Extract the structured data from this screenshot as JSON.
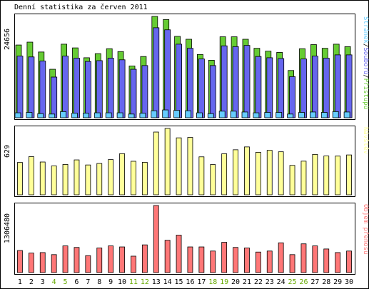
{
  "title": "Denní statistika za červen 2011",
  "colors": {
    "hits": "#66cc33",
    "files": "#6666ee",
    "pages": "#66ccff",
    "visits": "#ffff99",
    "kbytes": "#ff7777",
    "weekend": "#66aa00",
    "text": "#000000",
    "border": "#000000",
    "grid": "#cccccc"
  },
  "chart_data": [
    {
      "type": "bar",
      "panel": "hits",
      "categories": [
        "1",
        "2",
        "3",
        "4",
        "5",
        "6",
        "7",
        "8",
        "9",
        "10",
        "11",
        "12",
        "13",
        "14",
        "15",
        "16",
        "17",
        "18",
        "19",
        "20",
        "21",
        "22",
        "23",
        "24",
        "25",
        "26",
        "27",
        "28",
        "29",
        "30"
      ],
      "weekend_days": [
        "4",
        "5",
        "11",
        "12",
        "18",
        "19",
        "25",
        "26"
      ],
      "ymax_label": "24656",
      "ylim": [
        0,
        24656
      ],
      "legend": [
        {
          "name": "Přístupů",
          "color_key": "hits"
        },
        {
          "name": "Souborů",
          "color_key": "files"
        },
        {
          "name": "Stránek",
          "color_key": "pages"
        }
      ],
      "series": [
        {
          "name": "Přístupů",
          "values": [
            17700,
            18400,
            16000,
            11800,
            17900,
            17000,
            14600,
            15600,
            16800,
            16100,
            12600,
            14900,
            24656,
            23900,
            19800,
            19100,
            15400,
            14000,
            19700,
            19700,
            19100,
            16900,
            16200,
            15900,
            11500,
            16800,
            17800,
            16900,
            17900,
            17300
          ]
        },
        {
          "name": "Souborů",
          "values": [
            15000,
            14800,
            13800,
            9900,
            15000,
            14500,
            13700,
            13900,
            14500,
            14100,
            11800,
            12700,
            21900,
            21400,
            17900,
            16900,
            14300,
            12700,
            17500,
            17300,
            17600,
            14900,
            14600,
            14400,
            10000,
            14300,
            15000,
            14500,
            15300,
            15300
          ]
        },
        {
          "name": "Stránek",
          "values": [
            1200,
            1300,
            1000,
            900,
            1500,
            1100,
            1100,
            1200,
            1200,
            1200,
            900,
            1100,
            1700,
            1900,
            1800,
            1700,
            1200,
            1000,
            1600,
            1600,
            1400,
            1200,
            1300,
            1300,
            900,
            1300,
            1400,
            1300,
            1500,
            1400
          ]
        }
      ]
    },
    {
      "type": "bar",
      "panel": "visits",
      "categories": [
        "1",
        "2",
        "3",
        "4",
        "5",
        "6",
        "7",
        "8",
        "9",
        "10",
        "11",
        "12",
        "13",
        "14",
        "15",
        "16",
        "17",
        "18",
        "19",
        "20",
        "21",
        "22",
        "23",
        "24",
        "25",
        "26",
        "27",
        "28",
        "29",
        "30"
      ],
      "ymax_label": "629",
      "ylim": [
        0,
        629
      ],
      "legend": [
        {
          "name": "Návštěv",
          "color_key": "visits"
        }
      ],
      "series": [
        {
          "name": "Návštěv",
          "values": [
            307,
            362,
            311,
            274,
            288,
            331,
            283,
            297,
            334,
            390,
            318,
            308,
            595,
            629,
            540,
            544,
            360,
            287,
            389,
            427,
            454,
            403,
            422,
            408,
            279,
            319,
            383,
            368,
            367,
            378
          ]
        }
      ]
    },
    {
      "type": "bar",
      "panel": "kbytes",
      "categories": [
        "1",
        "2",
        "3",
        "4",
        "5",
        "6",
        "7",
        "8",
        "9",
        "10",
        "11",
        "12",
        "13",
        "14",
        "15",
        "16",
        "17",
        "18",
        "19",
        "20",
        "21",
        "22",
        "23",
        "24",
        "25",
        "26",
        "27",
        "28",
        "29",
        "30"
      ],
      "ymax_label": "1306480",
      "ylim": [
        0,
        1306480
      ],
      "legend": [
        {
          "name": "Objem přenosu",
          "color_key": "kbytes"
        }
      ],
      "series": [
        {
          "name": "Objem přenosu",
          "values": [
            430000,
            380000,
            390000,
            350000,
            520000,
            490000,
            330000,
            480000,
            520000,
            500000,
            320000,
            540000,
            1306480,
            630000,
            730000,
            500000,
            500000,
            420000,
            590000,
            490000,
            480000,
            400000,
            420000,
            580000,
            350000,
            560000,
            520000,
            460000,
            390000,
            420000
          ]
        }
      ]
    }
  ]
}
